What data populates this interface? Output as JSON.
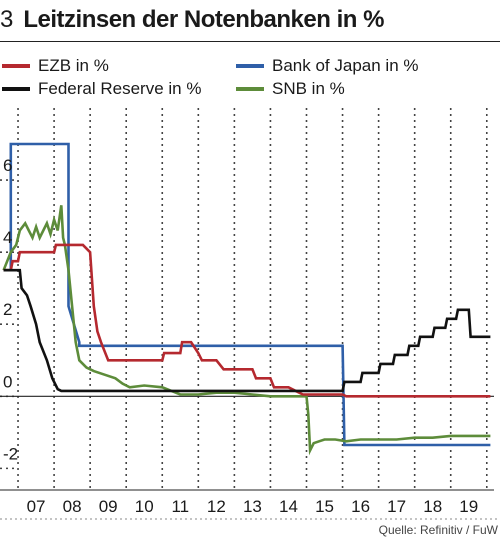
{
  "header": {
    "figure_number": "3",
    "title": "Leitzinsen der Notenbanken in %"
  },
  "source": "Quelle: Refinitiv / FuW",
  "colors": {
    "ezb": "#b5292f",
    "fed": "#111111",
    "boj": "#2f5fa8",
    "snb": "#5d8c3a",
    "grid": "#444444",
    "zero_line": "#222222"
  },
  "chart_data": {
    "type": "line",
    "title": "Leitzinsen der Notenbanken in %",
    "xlabel": "",
    "ylabel": "",
    "x_unit": "year",
    "xlim": [
      2006.0,
      2019.7
    ],
    "ylim": [
      -2.6,
      8.0
    ],
    "x_ticks": [
      2007,
      2008,
      2009,
      2010,
      2011,
      2012,
      2013,
      2014,
      2015,
      2016,
      2017,
      2018,
      2019
    ],
    "x_tick_labels": [
      "07",
      "08",
      "09",
      "10",
      "11",
      "12",
      "13",
      "14",
      "15",
      "16",
      "17",
      "18",
      "19"
    ],
    "y_ticks": [
      -2,
      0,
      2,
      4,
      6
    ],
    "y_tick_labels": [
      "-2",
      "0",
      "2",
      "4",
      "6"
    ],
    "grid": "vertical dotted",
    "legend": "top",
    "series": [
      {
        "name": "EZB in %",
        "key": "ezb",
        "points": [
          [
            2006.1,
            3.5
          ],
          [
            2006.3,
            3.5
          ],
          [
            2006.35,
            3.75
          ],
          [
            2006.5,
            3.75
          ],
          [
            2006.55,
            4.0
          ],
          [
            2007.5,
            4.0
          ],
          [
            2007.55,
            4.2
          ],
          [
            2008.3,
            4.2
          ],
          [
            2008.5,
            4.0
          ],
          [
            2008.6,
            2.5
          ],
          [
            2008.7,
            1.8
          ],
          [
            2008.8,
            1.5
          ],
          [
            2009.0,
            1.0
          ],
          [
            2009.5,
            1.0
          ],
          [
            2010.5,
            1.0
          ],
          [
            2010.55,
            1.2
          ],
          [
            2011.0,
            1.2
          ],
          [
            2011.05,
            1.5
          ],
          [
            2011.3,
            1.5
          ],
          [
            2011.5,
            1.2
          ],
          [
            2011.6,
            1.0
          ],
          [
            2012.0,
            1.0
          ],
          [
            2012.2,
            0.75
          ],
          [
            2013.0,
            0.75
          ],
          [
            2013.1,
            0.5
          ],
          [
            2013.5,
            0.5
          ],
          [
            2013.6,
            0.25
          ],
          [
            2014.0,
            0.25
          ],
          [
            2014.2,
            0.15
          ],
          [
            2014.4,
            0.05
          ],
          [
            2015.5,
            0.05
          ],
          [
            2015.6,
            0.0
          ],
          [
            2019.6,
            0.0
          ]
        ]
      },
      {
        "name": "Federal Reserve in %",
        "key": "fed",
        "points": [
          [
            2006.1,
            3.5
          ],
          [
            2006.55,
            3.5
          ],
          [
            2006.6,
            3.0
          ],
          [
            2006.75,
            2.8
          ],
          [
            2006.85,
            2.5
          ],
          [
            2007.0,
            2.0
          ],
          [
            2007.1,
            1.5
          ],
          [
            2007.3,
            1.0
          ],
          [
            2007.45,
            0.5
          ],
          [
            2007.6,
            0.2
          ],
          [
            2007.7,
            0.15
          ],
          [
            2008.0,
            0.15
          ],
          [
            2008.5,
            0.15
          ],
          [
            2015.5,
            0.15
          ],
          [
            2015.55,
            0.4
          ],
          [
            2016.0,
            0.4
          ],
          [
            2016.05,
            0.65
          ],
          [
            2016.5,
            0.65
          ],
          [
            2016.55,
            0.9
          ],
          [
            2016.9,
            0.9
          ],
          [
            2016.95,
            1.15
          ],
          [
            2017.3,
            1.15
          ],
          [
            2017.35,
            1.4
          ],
          [
            2017.6,
            1.4
          ],
          [
            2017.65,
            1.65
          ],
          [
            2018.0,
            1.65
          ],
          [
            2018.05,
            1.9
          ],
          [
            2018.35,
            1.9
          ],
          [
            2018.4,
            2.15
          ],
          [
            2018.65,
            2.15
          ],
          [
            2018.7,
            2.4
          ],
          [
            2019.0,
            2.4
          ],
          [
            2019.05,
            1.65
          ],
          [
            2019.6,
            1.65
          ]
        ]
      },
      {
        "name": "Bank of Japan in %",
        "key": "boj",
        "points": [
          [
            2006.1,
            3.5
          ],
          [
            2006.3,
            3.5
          ],
          [
            2006.3,
            7.0
          ],
          [
            2007.9,
            7.0
          ],
          [
            2007.9,
            2.5
          ],
          [
            2008.2,
            1.5
          ],
          [
            2008.2,
            1.4
          ],
          [
            2015.5,
            1.4
          ],
          [
            2015.55,
            -1.35
          ],
          [
            2019.6,
            -1.35
          ]
        ]
      },
      {
        "name": "SNB in %",
        "key": "snb",
        "points": [
          [
            2006.1,
            3.5
          ],
          [
            2006.2,
            3.75
          ],
          [
            2006.3,
            4.0
          ],
          [
            2006.45,
            4.2
          ],
          [
            2006.55,
            4.6
          ],
          [
            2006.7,
            4.8
          ],
          [
            2006.8,
            4.6
          ],
          [
            2006.9,
            4.4
          ],
          [
            2007.0,
            4.7
          ],
          [
            2007.1,
            4.4
          ],
          [
            2007.2,
            4.6
          ],
          [
            2007.3,
            4.8
          ],
          [
            2007.4,
            4.5
          ],
          [
            2007.5,
            4.9
          ],
          [
            2007.6,
            4.6
          ],
          [
            2007.7,
            5.3
          ],
          [
            2007.75,
            4.4
          ],
          [
            2007.8,
            4.2
          ],
          [
            2007.9,
            3.5
          ],
          [
            2008.0,
            2.5
          ],
          [
            2008.1,
            1.5
          ],
          [
            2008.2,
            1.0
          ],
          [
            2008.4,
            0.8
          ],
          [
            2008.6,
            0.7
          ],
          [
            2008.9,
            0.6
          ],
          [
            2009.2,
            0.5
          ],
          [
            2009.4,
            0.35
          ],
          [
            2009.5,
            0.3
          ],
          [
            2009.6,
            0.25
          ],
          [
            2010.0,
            0.3
          ],
          [
            2010.5,
            0.25
          ],
          [
            2011.0,
            0.05
          ],
          [
            2011.5,
            0.05
          ],
          [
            2012.0,
            0.1
          ],
          [
            2012.5,
            0.1
          ],
          [
            2013.0,
            0.05
          ],
          [
            2013.5,
            0.0
          ],
          [
            2014.5,
            0.0
          ],
          [
            2014.55,
            -0.5
          ],
          [
            2014.6,
            -1.5
          ],
          [
            2014.7,
            -1.3
          ],
          [
            2014.85,
            -1.25
          ],
          [
            2015.0,
            -1.2
          ],
          [
            2015.3,
            -1.2
          ],
          [
            2015.6,
            -1.25
          ],
          [
            2016.0,
            -1.2
          ],
          [
            2016.5,
            -1.2
          ],
          [
            2017.0,
            -1.2
          ],
          [
            2017.5,
            -1.15
          ],
          [
            2018.0,
            -1.15
          ],
          [
            2018.5,
            -1.1
          ],
          [
            2019.0,
            -1.1
          ],
          [
            2019.6,
            -1.1
          ]
        ]
      }
    ]
  }
}
